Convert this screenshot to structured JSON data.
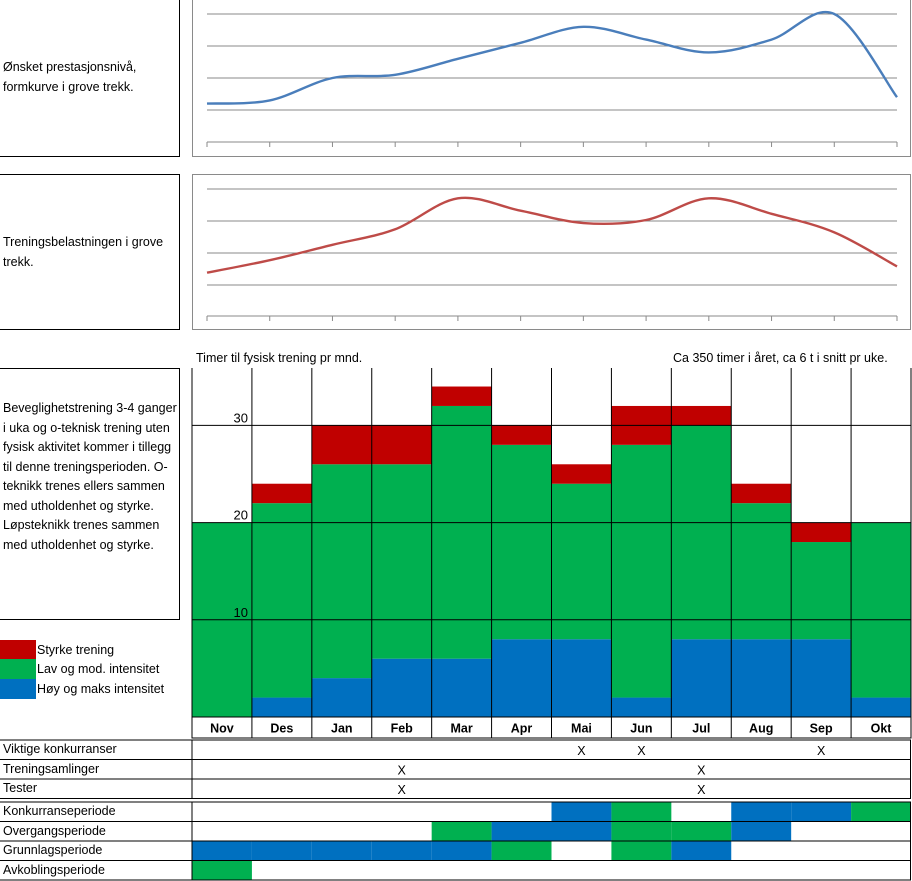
{
  "sections": {
    "performance": {
      "label": "Ønsket prestasjonsnivå, formkurve i grove trekk."
    },
    "load": {
      "label": "Treningsbelastningen i grove trekk."
    },
    "note": {
      "text": "Beveglighetstrening 3-4 ganger i uka og o-teknisk trening uten fysisk aktivitet kommer i tillegg til denne treningsperioden. O-teknikk trenes ellers sammen med utholdenhet og styrke. Løpsteknikk trenes sammen med utholdenhet og styrke."
    }
  },
  "colors": {
    "performance_line": "#4a7ebb",
    "load_line": "#be4b48",
    "styrke": "#c00000",
    "lav": "#00b050",
    "hoy": "#0070c0",
    "grid": "#8a8a8a"
  },
  "chart_data": [
    {
      "type": "line",
      "x": [
        "Nov",
        "Des",
        "Jan",
        "Feb",
        "Mar",
        "Apr",
        "Mai",
        "Jun",
        "Jul",
        "Aug",
        "Sep",
        "Okt"
      ],
      "series": [
        {
          "values": [
            1.2,
            1.3,
            2.0,
            2.1,
            2.6,
            3.1,
            3.6,
            3.2,
            2.8,
            3.2,
            4.0,
            1.4
          ]
        }
      ],
      "ylim": [
        0,
        4.0
      ],
      "grid": true
    },
    {
      "type": "line",
      "x": [
        "Nov",
        "Des",
        "Jan",
        "Feb",
        "Mar",
        "Apr",
        "Mai",
        "Jun",
        "Jul",
        "Aug",
        "Sep",
        "Okt"
      ],
      "series": [
        {
          "values": [
            1.4,
            1.8,
            2.3,
            2.8,
            3.8,
            3.4,
            3.0,
            3.1,
            3.8,
            3.3,
            2.7,
            1.6
          ]
        }
      ],
      "ylim": [
        0,
        4.1
      ],
      "grid": true
    },
    {
      "type": "bar",
      "stacked": true,
      "title_left": "Timer til fysisk trening pr mnd.",
      "title_right": "Ca 350 timer i året, ca 6 t i snitt pr uke.",
      "categories": [
        "Nov",
        "Des",
        "Jan",
        "Feb",
        "Mar",
        "Apr",
        "Mai",
        "Jun",
        "Jul",
        "Aug",
        "Sep",
        "Okt"
      ],
      "series": [
        {
          "name": "Høy og maks intensitet",
          "color": "#0070c0",
          "values": [
            0,
            2,
            4,
            6,
            6,
            8,
            8,
            2,
            8,
            8,
            8,
            2
          ]
        },
        {
          "name": "Lav og mod. intensitet",
          "color": "#00b050",
          "values": [
            20,
            20,
            22,
            20,
            26,
            20,
            16,
            26,
            22,
            14,
            10,
            18
          ]
        },
        {
          "name": "Styrke trening",
          "color": "#c00000",
          "values": [
            0,
            2,
            4,
            4,
            2,
            2,
            2,
            4,
            2,
            2,
            2,
            0
          ]
        }
      ],
      "y_ticks": [
        "10",
        "20",
        "30"
      ],
      "ylim": [
        0,
        36
      ],
      "grid": true
    }
  ],
  "events": [
    {
      "label": "Viktige konkurranser",
      "marks": [
        "",
        "",
        "",
        "",
        "",
        "",
        "X",
        "X",
        "",
        "",
        "X",
        ""
      ]
    },
    {
      "label": "Treningsamlinger",
      "marks": [
        "",
        "",
        "",
        "X",
        "",
        "",
        "",
        "",
        "X",
        "",
        "",
        ""
      ]
    },
    {
      "label": "Tester",
      "marks": [
        "",
        "",
        "",
        "X",
        "",
        "",
        "",
        "",
        "X",
        "",
        "",
        ""
      ]
    }
  ],
  "periods": [
    {
      "label": "Konkurranseperiode",
      "cells": [
        "",
        "",
        "",
        "",
        "",
        "",
        "b",
        "g",
        "",
        "b",
        "b",
        "g"
      ]
    },
    {
      "label": "Overgangsperiode",
      "cells": [
        "",
        "",
        "",
        "",
        "g",
        "b",
        "b",
        "g",
        "g",
        "b",
        "",
        ""
      ]
    },
    {
      "label": "Grunnlagsperiode",
      "cells": [
        "b",
        "b",
        "b",
        "b",
        "b",
        "g",
        "",
        "g",
        "b",
        "",
        "",
        ""
      ]
    },
    {
      "label": "Avkoblingsperiode",
      "cells": [
        "g",
        "",
        "",
        "",
        "",
        "",
        "",
        "",
        "",
        "",
        "",
        ""
      ]
    }
  ]
}
